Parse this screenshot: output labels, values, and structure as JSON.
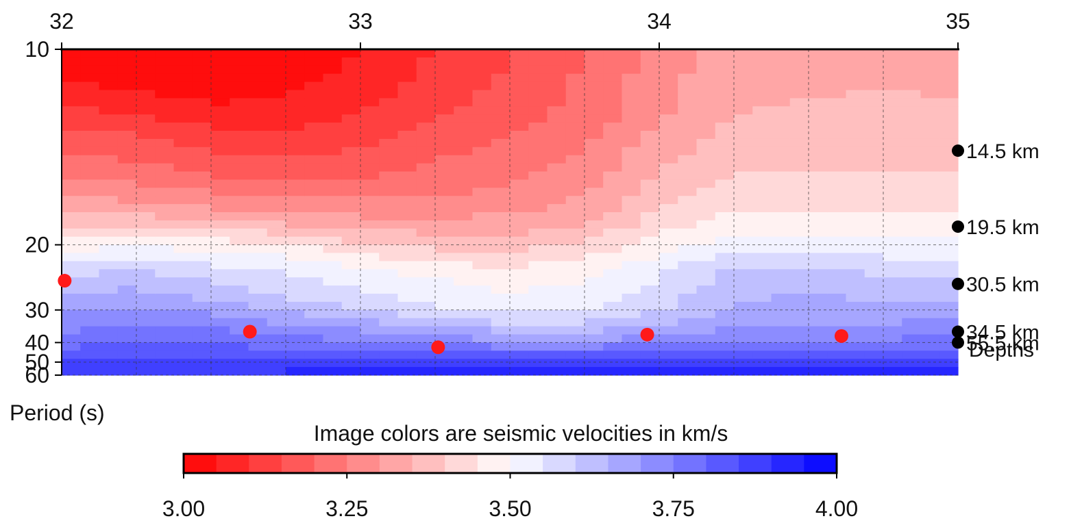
{
  "chart_data": {
    "type": "heatmap",
    "x_ticks": [
      "32",
      "33",
      "34",
      "35"
    ],
    "x_range": [
      32,
      35
    ],
    "y_ticks": [
      "10",
      "20",
      "30",
      "40",
      "50",
      "60"
    ],
    "y_range": [
      10,
      60
    ],
    "y_scale": "reciprocal",
    "y_label": "Period (s)",
    "grid": true,
    "colorbar": {
      "title": "Image colors are seismic velocities in km/s",
      "min": 3.0,
      "max": 4.0,
      "step": 0.05,
      "tick_labels": [
        "3.00",
        "3.25",
        "3.50",
        "3.75",
        "4.00"
      ],
      "low_color": "#ff0000",
      "mid_color": "#ffffff",
      "high_color": "#0000ff"
    },
    "depth_markers": {
      "legend_label": "Depths",
      "marker_color": "#000000",
      "items": [
        {
          "label": "14.5 km",
          "period": 13.5
        },
        {
          "label": "19.5 km",
          "period": 18.3
        },
        {
          "label": "30.5 km",
          "period": 25.0
        },
        {
          "label": "34.5 km",
          "period": 36.0
        },
        {
          "label": "55.5 km",
          "period": 40.0
        }
      ]
    },
    "red_points": {
      "color": "#ff1a1a",
      "points": [
        {
          "x": 32.01,
          "period": 24.5
        },
        {
          "x": 32.63,
          "period": 36.0
        },
        {
          "x": 33.26,
          "period": 42.0
        },
        {
          "x": 33.96,
          "period": 37.0
        },
        {
          "x": 34.61,
          "period": 37.5
        }
      ]
    },
    "velocity_profiles": {
      "x": [
        32.0,
        32.25,
        32.5,
        32.75,
        33.0,
        33.25,
        33.5,
        33.75,
        34.0,
        34.25,
        34.5,
        34.75,
        35.0
      ],
      "period": [
        10,
        11,
        12,
        13,
        15,
        17,
        19,
        21,
        23,
        25,
        28,
        31,
        35,
        40,
        45,
        50,
        55,
        60
      ],
      "velocity": [
        [
          3.02,
          3.06,
          3.12,
          3.18,
          3.26,
          3.34,
          3.44,
          3.52,
          3.58,
          3.62,
          3.66,
          3.7,
          3.74,
          3.78,
          3.82,
          3.85,
          3.88,
          3.9
        ],
        [
          3.0,
          3.04,
          3.1,
          3.16,
          3.24,
          3.33,
          3.44,
          3.53,
          3.6,
          3.64,
          3.68,
          3.72,
          3.76,
          3.8,
          3.83,
          3.86,
          3.88,
          3.9
        ],
        [
          3.0,
          3.02,
          3.07,
          3.13,
          3.21,
          3.31,
          3.43,
          3.52,
          3.57,
          3.61,
          3.65,
          3.7,
          3.75,
          3.79,
          3.83,
          3.86,
          3.89,
          3.92
        ],
        [
          3.02,
          3.04,
          3.07,
          3.12,
          3.19,
          3.29,
          3.4,
          3.49,
          3.54,
          3.57,
          3.61,
          3.66,
          3.72,
          3.78,
          3.82,
          3.86,
          3.89,
          3.92
        ],
        [
          3.05,
          3.07,
          3.1,
          3.14,
          3.2,
          3.28,
          3.37,
          3.45,
          3.51,
          3.54,
          3.57,
          3.62,
          3.69,
          3.76,
          3.81,
          3.86,
          3.9,
          3.94
        ],
        [
          3.1,
          3.12,
          3.15,
          3.18,
          3.22,
          3.28,
          3.35,
          3.42,
          3.48,
          3.51,
          3.53,
          3.58,
          3.66,
          3.74,
          3.81,
          3.86,
          3.91,
          3.96
        ],
        [
          3.15,
          3.16,
          3.18,
          3.2,
          3.24,
          3.29,
          3.35,
          3.41,
          3.46,
          3.49,
          3.51,
          3.55,
          3.63,
          3.72,
          3.8,
          3.86,
          3.91,
          3.96
        ],
        [
          3.2,
          3.21,
          3.22,
          3.24,
          3.28,
          3.32,
          3.38,
          3.44,
          3.48,
          3.5,
          3.52,
          3.56,
          3.63,
          3.72,
          3.8,
          3.86,
          3.91,
          3.95
        ],
        [
          3.27,
          3.28,
          3.29,
          3.32,
          3.36,
          3.4,
          3.45,
          3.5,
          3.54,
          3.56,
          3.58,
          3.61,
          3.66,
          3.73,
          3.8,
          3.85,
          3.9,
          3.94
        ],
        [
          3.33,
          3.34,
          3.35,
          3.37,
          3.41,
          3.45,
          3.5,
          3.56,
          3.61,
          3.63,
          3.65,
          3.67,
          3.7,
          3.75,
          3.81,
          3.86,
          3.9,
          3.94
        ],
        [
          3.33,
          3.34,
          3.36,
          3.38,
          3.41,
          3.45,
          3.5,
          3.56,
          3.61,
          3.64,
          3.66,
          3.68,
          3.71,
          3.75,
          3.81,
          3.86,
          3.9,
          3.94
        ],
        [
          3.34,
          3.35,
          3.36,
          3.38,
          3.41,
          3.44,
          3.49,
          3.54,
          3.59,
          3.62,
          3.65,
          3.68,
          3.71,
          3.76,
          3.81,
          3.86,
          3.9,
          3.94
        ],
        [
          3.33,
          3.34,
          3.36,
          3.38,
          3.41,
          3.44,
          3.49,
          3.54,
          3.59,
          3.62,
          3.65,
          3.69,
          3.73,
          3.78,
          3.83,
          3.87,
          3.91,
          3.95
        ]
      ]
    }
  }
}
